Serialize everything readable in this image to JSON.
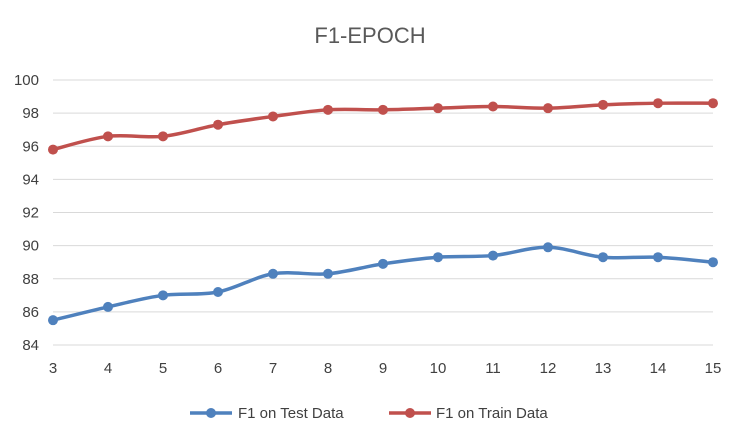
{
  "chart_data": {
    "type": "line",
    "title": "F1-EPOCH",
    "xlabel": "",
    "ylabel": "",
    "x": [
      3,
      4,
      5,
      6,
      7,
      8,
      9,
      10,
      11,
      12,
      13,
      14,
      15
    ],
    "ylim": [
      84,
      100
    ],
    "yticks": [
      84,
      86,
      88,
      90,
      92,
      94,
      96,
      98,
      100
    ],
    "grid": true,
    "legend_position": "bottom",
    "series": [
      {
        "name": "F1 on Test Data",
        "color": "#4f81bd",
        "values": [
          85.5,
          86.3,
          87.0,
          87.2,
          88.3,
          88.3,
          88.9,
          89.3,
          89.4,
          89.9,
          89.3,
          89.3,
          89.0
        ]
      },
      {
        "name": "F1 on Train Data",
        "color": "#c0504d",
        "values": [
          95.8,
          96.6,
          96.6,
          97.3,
          97.8,
          98.2,
          98.2,
          98.3,
          98.4,
          98.3,
          98.5,
          98.6,
          98.6
        ]
      }
    ]
  }
}
